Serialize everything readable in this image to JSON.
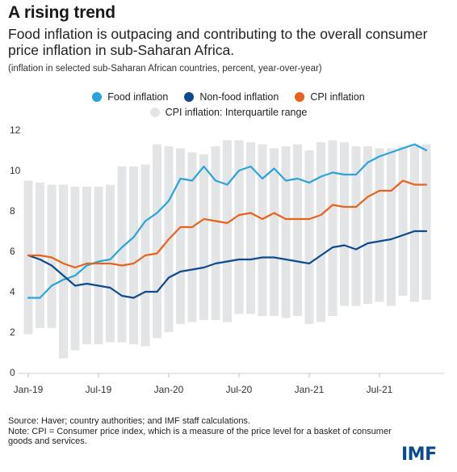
{
  "header": {
    "title": "A rising trend",
    "subtitle": "Food inflation is outpacing and contributing to the overall consumer price inflation in sub-Saharan Africa.",
    "note": "(inflation in selected sub-Saharan African countries, percent, year-over-year)"
  },
  "legend": {
    "food": "Food inflation",
    "nonfood": "Non-food inflation",
    "cpi": "CPI inflation",
    "iqr": "CPI inflation: Interquartile range"
  },
  "footer": {
    "source": "Source: Haver; country authorities; and IMF staff calculations.",
    "note": "Note: CPI = Consumer price index, which is a measure of the price level for a basket of consumer goods and services.",
    "logo": "IMF"
  },
  "colors": {
    "food": "#29a3dc",
    "nonfood": "#0d4a8e",
    "cpi": "#e8621d",
    "iqr": "#e3e4e6"
  },
  "chart_data": {
    "type": "line",
    "ylim": [
      0,
      12
    ],
    "yticks": [
      0,
      2,
      4,
      6,
      8,
      10,
      12
    ],
    "xtick_labels": [
      {
        "index": 0,
        "label": "Jan-19"
      },
      {
        "index": 6,
        "label": "Jul-19"
      },
      {
        "index": 12,
        "label": "Jan-20"
      },
      {
        "index": 18,
        "label": "Jul-20"
      },
      {
        "index": 24,
        "label": "Jan-21"
      },
      {
        "index": 30,
        "label": "Jul-21"
      }
    ],
    "x": [
      "Jan-19",
      "Feb-19",
      "Mar-19",
      "Apr-19",
      "May-19",
      "Jun-19",
      "Jul-19",
      "Aug-19",
      "Sep-19",
      "Oct-19",
      "Nov-19",
      "Dec-19",
      "Jan-20",
      "Feb-20",
      "Mar-20",
      "Apr-20",
      "May-20",
      "Jun-20",
      "Jul-20",
      "Aug-20",
      "Sep-20",
      "Oct-20",
      "Nov-20",
      "Dec-20",
      "Jan-21",
      "Feb-21",
      "Mar-21",
      "Apr-21",
      "May-21",
      "Jun-21",
      "Jul-21",
      "Aug-21",
      "Sep-21",
      "Oct-21",
      "Nov-21"
    ],
    "grid": false,
    "legend_position": "top-center",
    "iqr_low": [
      1.9,
      2.2,
      2.2,
      0.7,
      1.1,
      1.4,
      1.4,
      1.5,
      1.5,
      1.4,
      1.3,
      1.7,
      2.0,
      2.4,
      2.5,
      2.6,
      2.6,
      2.5,
      2.9,
      2.9,
      2.8,
      2.8,
      2.7,
      2.8,
      2.4,
      2.5,
      2.8,
      3.3,
      3.3,
      3.4,
      3.5,
      3.3,
      3.8,
      3.5,
      3.6
    ],
    "iqr_high": [
      9.5,
      9.4,
      9.3,
      9.3,
      9.2,
      9.2,
      9.2,
      9.3,
      10.2,
      10.2,
      10.3,
      11.3,
      11.2,
      11.1,
      10.9,
      10.8,
      11.2,
      11.5,
      11.5,
      11.4,
      11.3,
      11.1,
      11.2,
      11.3,
      11.0,
      11.4,
      11.5,
      11.4,
      11.2,
      11.2,
      11.1,
      11.1,
      11.2,
      11.3,
      11.3
    ],
    "series": [
      {
        "name": "Food inflation",
        "key": "food",
        "values": [
          3.7,
          3.7,
          4.3,
          4.6,
          4.8,
          5.3,
          5.5,
          5.6,
          6.2,
          6.7,
          7.5,
          7.9,
          8.5,
          9.6,
          9.5,
          10.2,
          9.5,
          9.3,
          10.0,
          10.2,
          9.6,
          10.1,
          9.5,
          9.6,
          9.4,
          9.7,
          9.9,
          9.8,
          9.8,
          10.4,
          10.7,
          10.9,
          11.1,
          11.3,
          11.0
        ]
      },
      {
        "name": "Non-food inflation",
        "key": "nonfood",
        "values": [
          5.8,
          5.6,
          5.3,
          4.8,
          4.3,
          4.4,
          4.3,
          4.2,
          3.8,
          3.7,
          4.0,
          4.0,
          4.7,
          5.0,
          5.1,
          5.2,
          5.4,
          5.5,
          5.6,
          5.6,
          5.7,
          5.7,
          5.6,
          5.5,
          5.4,
          5.8,
          6.2,
          6.3,
          6.1,
          6.4,
          6.5,
          6.6,
          6.8,
          7.0,
          7.0
        ]
      },
      {
        "name": "CPI inflation",
        "key": "cpi",
        "values": [
          5.8,
          5.8,
          5.7,
          5.4,
          5.2,
          5.4,
          5.4,
          5.4,
          5.3,
          5.4,
          5.8,
          5.9,
          6.6,
          7.2,
          7.2,
          7.6,
          7.5,
          7.4,
          7.8,
          7.9,
          7.6,
          7.9,
          7.6,
          7.6,
          7.6,
          7.8,
          8.3,
          8.2,
          8.2,
          8.7,
          9.0,
          9.0,
          9.5,
          9.3,
          9.3
        ]
      }
    ]
  }
}
